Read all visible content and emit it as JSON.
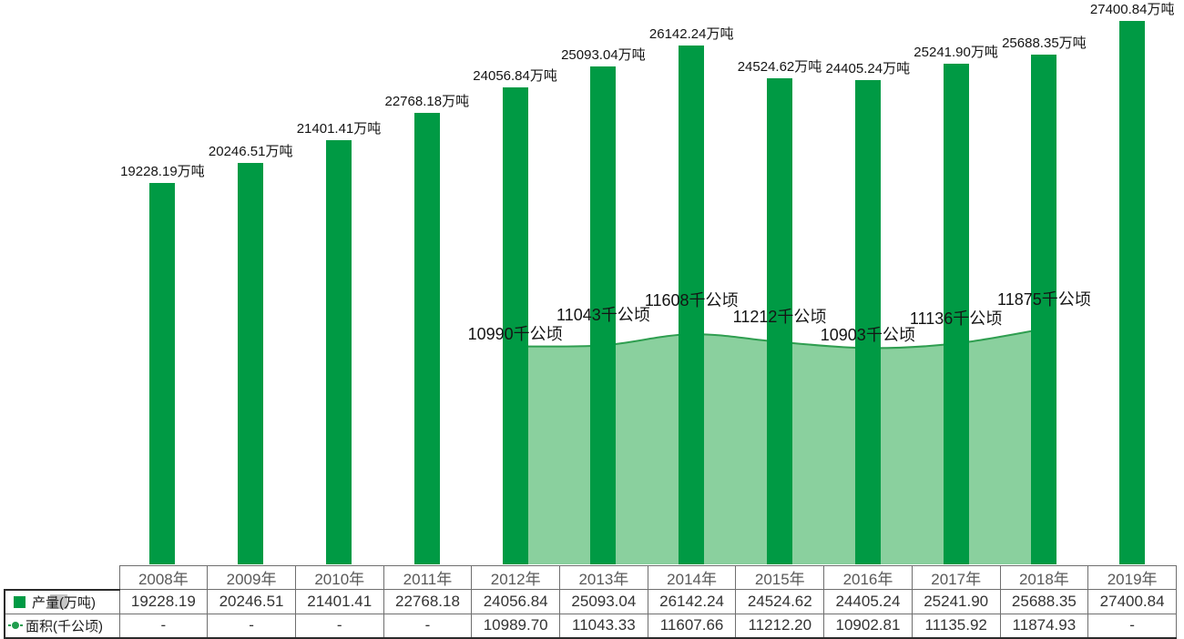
{
  "colors": {
    "bar_green": "#009a44",
    "area_fill": "#8ad09e",
    "area_line": "#2f9e50",
    "legend_green": "#1f9d4e",
    "table_border": "#6f6f6f",
    "table_border_dark": "#2b2b2b",
    "header_text": "#595959",
    "value_text": "#333333"
  },
  "chart_data": {
    "type": "bar",
    "categories": [
      "2008年",
      "2009年",
      "2010年",
      "2011年",
      "2012年",
      "2013年",
      "2014年",
      "2015年",
      "2016年",
      "2017年",
      "2018年",
      "2019年"
    ],
    "series": [
      {
        "name": "产量(万吨)",
        "type": "bar",
        "color": "#009a44",
        "values": [
          19228.19,
          20246.51,
          21401.41,
          22768.18,
          24056.84,
          25093.04,
          26142.24,
          24524.62,
          24405.24,
          25241.9,
          25688.35,
          27400.84
        ],
        "labels": [
          "19228.19万吨",
          "20246.51万吨",
          "21401.41万吨",
          "22768.18万吨",
          "24056.84万吨",
          "25093.04万吨",
          "26142.24万吨",
          "24524.62万吨",
          "24405.24万吨",
          "25241.90万吨",
          "25688.35万吨",
          "27400.84万吨"
        ]
      },
      {
        "name": "面积(千公顷)",
        "type": "area",
        "line_color": "#2f9e50",
        "fill_color": "#8ad09e",
        "values": [
          null,
          null,
          null,
          null,
          10989.7,
          11043.33,
          11607.66,
          11212.2,
          10902.81,
          11135.92,
          11874.93,
          null
        ],
        "labels": [
          null,
          null,
          null,
          null,
          "10990千公顷",
          "11043千公顷",
          "11608千公顷",
          "11212千公顷",
          "10903千公顷",
          "11136千公顷",
          "11875千公顷",
          null
        ]
      }
    ],
    "ylim": [
      0,
      28400
    ],
    "grid": false,
    "legend_position": "table-left-column",
    "title": ""
  },
  "table": {
    "corner_cell": "",
    "columns": [
      "2008年",
      "2009年",
      "2010年",
      "2011年",
      "2012年",
      "2013年",
      "2014年",
      "2015年",
      "2016年",
      "2017年",
      "2018年",
      "2019年"
    ],
    "rows": [
      {
        "label": "产量(万吨)",
        "marker": "bar-square",
        "values": [
          "19228.19",
          "20246.51",
          "21401.41",
          "22768.18",
          "24056.84",
          "25093.04",
          "26142.24",
          "24524.62",
          "24405.24",
          "25241.90",
          "25688.35",
          "27400.84"
        ]
      },
      {
        "label": "面积(千公顷)",
        "marker": "line-dot",
        "values": [
          "-",
          "-",
          "-",
          "-",
          "10989.70",
          "11043.33",
          "11607.66",
          "11212.20",
          "10902.81",
          "11135.92",
          "11874.93",
          "-"
        ]
      }
    ]
  }
}
